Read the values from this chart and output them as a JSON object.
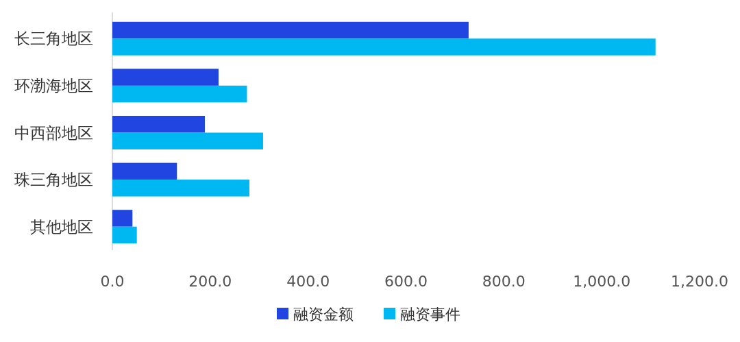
{
  "chart_data": {
    "type": "bar",
    "orientation": "horizontal",
    "categories": [
      "长三角地区",
      "环渤海地区",
      "中西部地区",
      "珠三角地区",
      "其他地区"
    ],
    "series": [
      {
        "name": "融资金额",
        "color": "#2045e0",
        "values": [
          728,
          217,
          189,
          132,
          41
        ]
      },
      {
        "name": "融资事件",
        "color": "#00b8f1",
        "values": [
          1110,
          275,
          308,
          280,
          50
        ]
      }
    ],
    "xlim": [
      0,
      1200
    ],
    "xticks": [
      {
        "value": 0,
        "label": "0.0"
      },
      {
        "value": 200,
        "label": "200.0"
      },
      {
        "value": 400,
        "label": "400.0"
      },
      {
        "value": 600,
        "label": "600.0"
      },
      {
        "value": 800,
        "label": "800.0"
      },
      {
        "value": 1000,
        "label": "1,000.0"
      },
      {
        "value": 1200,
        "label": "1,200.0"
      }
    ],
    "legend": "bottom"
  }
}
